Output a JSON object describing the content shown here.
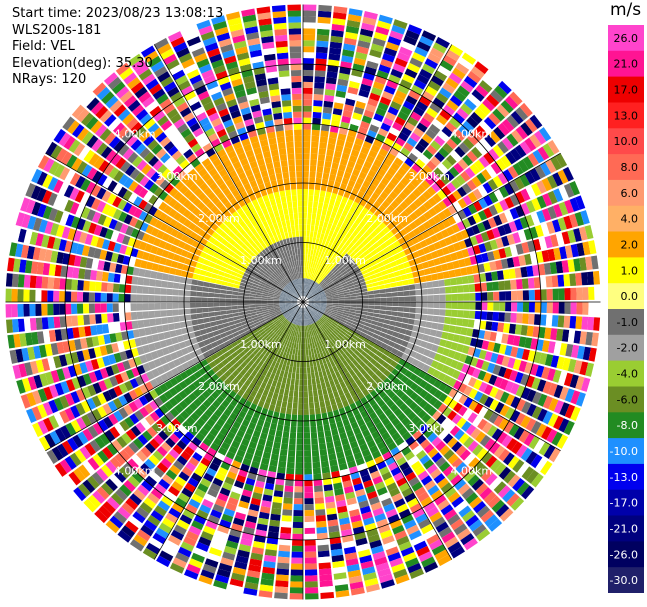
{
  "header": {
    "start_time": "Start time: 2023/08/23 13:08:13",
    "instrument": "WLS200s-181",
    "field": "Field: VEL",
    "elevation": "Elevation(deg): 35.30",
    "nrays": "NRays: 120"
  },
  "colorbar": {
    "unit": "m/s",
    "ticks": [
      "26.0",
      "21.0",
      "17.0",
      "13.0",
      "10.0",
      "8.0",
      "6.0",
      "4.0",
      "2.0",
      "1.0",
      "0.0",
      "-1.0",
      "-2.0",
      "-4.0",
      "-6.0",
      "-8.0",
      "-10.0",
      "-13.0",
      "-17.0",
      "-21.0",
      "-26.0",
      "-30.0"
    ],
    "colors": [
      "#ff44cc",
      "#ff1493",
      "#ee0000",
      "#ff2020",
      "#ff4a4a",
      "#ff6a55",
      "#ff9a70",
      "#ffb066",
      "#ffa500",
      "#ffff00",
      "#ffff80",
      "#707070",
      "#a0a0a0",
      "#9acd32",
      "#6b8e23",
      "#228b22",
      "#1e90ff",
      "#0000ee",
      "#0000aa",
      "#00007f",
      "#000060",
      "#20206a"
    ]
  },
  "chart_data": {
    "type": "heatmap",
    "subtype": "ppi-polar",
    "rays": 120,
    "range_rings_km": [
      1.0,
      2.0,
      3.0,
      4.0
    ],
    "ring_labels": [
      "1.00km",
      "2.00km",
      "3.00km",
      "4.00km"
    ],
    "clean_data_range_km": [
      0.0,
      2.9
    ],
    "noise_beyond_km": 2.9,
    "max_range_km": 5.0,
    "velocity_pattern": [
      {
        "sector": "north (az 280-80)",
        "near": "yellow 1.0-2.0",
        "far": "orange 4.0-6.0"
      },
      {
        "sector": "east (az 80-120)",
        "near": "gray 0.0",
        "far": "yellow-green -1.0"
      },
      {
        "sector": "south (az 120-240)",
        "near": "olive -4.0",
        "far": "green -6.0"
      },
      {
        "sector": "west (az 240-280)",
        "near": "gray 0.0",
        "far": "gray -1.0"
      }
    ],
    "legend_position": "right"
  }
}
